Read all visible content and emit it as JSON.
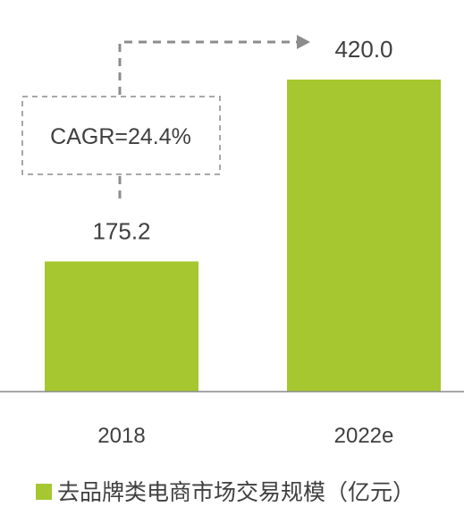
{
  "chart_data": {
    "type": "bar",
    "categories": [
      "2018",
      "2022e"
    ],
    "series": [
      {
        "name": "去品牌类电商市场交易规模（亿元）",
        "values": [
          175.2,
          420.0
        ]
      }
    ],
    "data_labels": [
      "175.2",
      "420.0"
    ],
    "ylim": [
      0,
      420
    ],
    "grid": false,
    "legend": "bottom-left",
    "annotation": {
      "text": "CAGR=24.4%"
    },
    "colors": {
      "bar": "#a6c730",
      "text": "#404040",
      "annotation_line": "#8c8c8c",
      "axis": "#8a8a8a"
    }
  }
}
